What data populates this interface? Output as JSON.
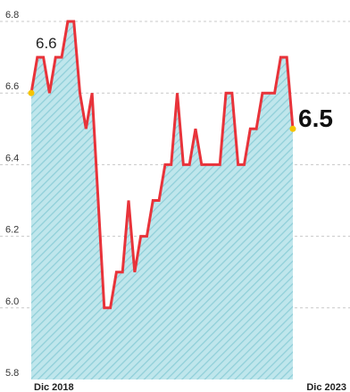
{
  "chart_data": {
    "type": "area",
    "title": "",
    "xlabel": "",
    "ylabel": "",
    "ylim": [
      5.8,
      6.8
    ],
    "yticks": [
      "6.8",
      "6.6",
      "6.4",
      "6.2",
      "6.0",
      "5.8"
    ],
    "x_tick_labels": [
      "Dic 2018",
      "Dic 2023"
    ],
    "grid": true,
    "series": [
      {
        "values": [
          6.6,
          6.7,
          6.7,
          6.6,
          6.7,
          6.7,
          6.8,
          6.8,
          6.6,
          6.5,
          6.6,
          6.3,
          6.0,
          6.0,
          6.1,
          6.1,
          6.3,
          6.1,
          6.2,
          6.2,
          6.3,
          6.3,
          6.4,
          6.4,
          6.6,
          6.4,
          6.4,
          6.5,
          6.4,
          6.4,
          6.4,
          6.4,
          6.6,
          6.6,
          6.4,
          6.4,
          6.5,
          6.5,
          6.6,
          6.6,
          6.6,
          6.7,
          6.7,
          6.5
        ]
      }
    ],
    "annotations": {
      "start_label": "6.6",
      "end_label": "6.5"
    },
    "colors": {
      "line": "#e8333a",
      "fill": "#bfe6ec",
      "hatch": "#8fcfd9",
      "marker": "#f5c400"
    }
  }
}
